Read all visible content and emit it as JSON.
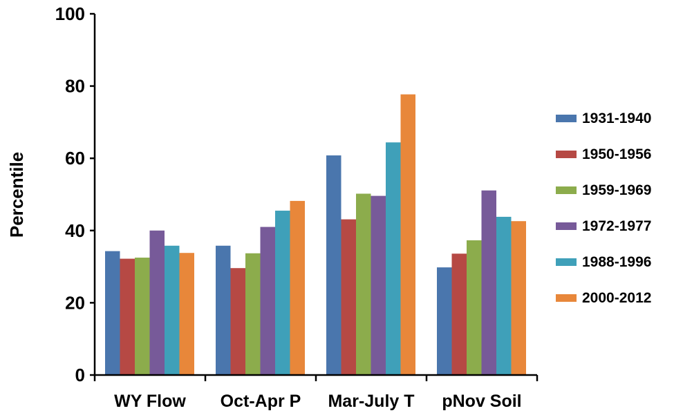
{
  "chart_data": {
    "type": "bar",
    "title": "",
    "xlabel": "",
    "ylabel": "Percentile",
    "ylim": [
      0,
      100
    ],
    "yticks": [
      "0",
      "20",
      "40",
      "60",
      "80",
      "100"
    ],
    "grid": false,
    "legend_position": "right",
    "categories": [
      "WY Flow",
      "Oct-Apr P",
      "Mar-July T",
      "pNov Soil"
    ],
    "series": [
      {
        "name": "1931-1940",
        "color": "#4a76ad",
        "values": [
          34.3,
          35.8,
          60.8,
          29.8
        ]
      },
      {
        "name": "1950-1956",
        "color": "#b64944",
        "values": [
          32.2,
          29.6,
          43.1,
          33.6
        ]
      },
      {
        "name": "1959-1969",
        "color": "#8cac4c",
        "values": [
          32.5,
          33.7,
          50.2,
          37.3
        ]
      },
      {
        "name": "1972-1977",
        "color": "#775a99",
        "values": [
          40.0,
          41.0,
          49.6,
          51.1
        ]
      },
      {
        "name": "1988-1996",
        "color": "#3fa0b9",
        "values": [
          35.8,
          45.5,
          64.4,
          43.8
        ]
      },
      {
        "name": "2000-2012",
        "color": "#e8873a",
        "values": [
          33.8,
          48.2,
          77.7,
          42.6
        ]
      }
    ]
  }
}
